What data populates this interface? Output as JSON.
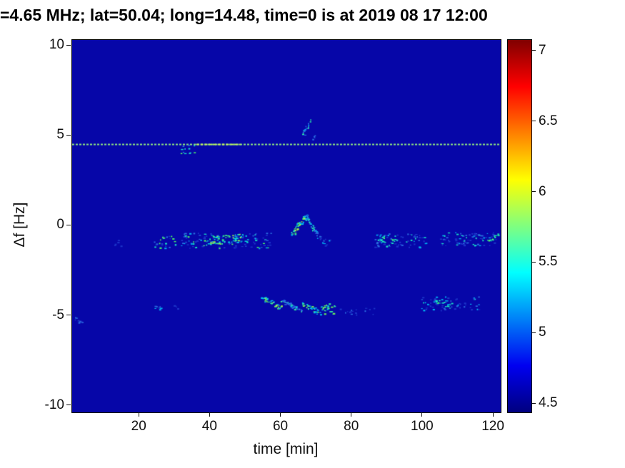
{
  "chart_data": {
    "type": "heatmap",
    "title": "=4.65 MHz;  lat=50.04; long=14.48, time=0 is at 2019 08 17 12:00",
    "xlabel": "time [min]",
    "ylabel": "Δf [Hz]",
    "xlim": [
      1,
      122
    ],
    "ylim": [
      -10.36,
      10.32
    ],
    "x_ticks": [
      20,
      40,
      60,
      80,
      100,
      120
    ],
    "x_tick_labels": [
      "20",
      "40",
      "60",
      "80",
      "100",
      "120"
    ],
    "y_ticks": [
      10,
      5,
      0,
      -5,
      -10
    ],
    "y_tick_labels": [
      "10",
      "5",
      "0",
      "-5",
      "-10"
    ],
    "background_color": "#0606a8",
    "colormap": "jet",
    "grid": false,
    "colorbar": {
      "clim": [
        4.44,
        7.08
      ],
      "ticks": [
        4.5,
        5,
        5.5,
        6,
        6.5,
        7
      ],
      "tick_labels": [
        "4.5",
        "5",
        "5.5",
        "6",
        "6.5",
        "7"
      ],
      "gradient": [
        [
          "#00007f",
          0
        ],
        [
          "#0000f0",
          0.125
        ],
        [
          "#00ffff",
          0.375
        ],
        [
          "#ffff00",
          0.625
        ],
        [
          "#ff0000",
          0.875
        ],
        [
          "#800000",
          1
        ]
      ]
    },
    "features": [
      {
        "name": "carrier-line",
        "type": "hline",
        "f": 4.55,
        "color": "#8fe87f",
        "dash": [
          3,
          2
        ],
        "line_width": 2
      },
      {
        "name": "carrier-line-bright",
        "type": "hseg",
        "f": 4.55,
        "t0": 36,
        "t1": 48.5,
        "color": "#c2f85c",
        "dash": [
          4,
          2
        ],
        "line_width": 2
      },
      {
        "name": "below-line-blob",
        "type": "speckles",
        "t0": 31.5,
        "t1": 36,
        "f_center": 4.3,
        "f_spread": 0.3,
        "n": 12,
        "palette": [
          "#2a6ce0",
          "#18d8c8",
          "#50f068"
        ],
        "seed": 11
      },
      {
        "name": "above-line-arc",
        "type": "streak",
        "t0": 65.8,
        "f0": 5.05,
        "t1": 68.3,
        "f1": 5.85,
        "n": 20,
        "jitter_f": 0.12,
        "palette": [
          "#2a6ce0",
          "#00c0f0",
          "#28e8a8"
        ],
        "seed": 12
      },
      {
        "name": "above-line-dot",
        "type": "speckles",
        "t0": 68.8,
        "t1": 69.8,
        "f_center": 4.95,
        "f_spread": 0.15,
        "n": 5,
        "palette": [
          "#2a6ce0",
          "#00c0f0"
        ],
        "seed": 13
      },
      {
        "name": "mid-band-left",
        "type": "speckles",
        "t0": 24,
        "t1": 57,
        "f_center": -0.8,
        "f_spread": 0.42,
        "n": 150,
        "palette": [
          "#1c34c8",
          "#2a6ce0",
          "#00b0f0",
          "#18e0c0",
          "#48f068"
        ],
        "seed": 14
      },
      {
        "name": "mid-band-left-bright",
        "type": "speckles",
        "t0": 39,
        "t1": 51,
        "f_center": -0.72,
        "f_spread": 0.28,
        "n": 55,
        "palette": [
          "#00d0e0",
          "#38f080",
          "#96f04c"
        ],
        "seed": 15
      },
      {
        "name": "peak-rise",
        "type": "streak",
        "t0": 62.5,
        "f0": -0.55,
        "t1": 67,
        "f1": 0.55,
        "n": 42,
        "jitter_f": 0.15,
        "palette": [
          "#00c0f0",
          "#20e8b0",
          "#58f060",
          "#a8f048"
        ],
        "seed": 16
      },
      {
        "name": "peak-fall",
        "type": "streak",
        "t0": 67,
        "f0": 0.55,
        "t1": 70.5,
        "f1": -0.6,
        "n": 34,
        "jitter_f": 0.15,
        "palette": [
          "#2a6ce0",
          "#00c0f0",
          "#20e8b0"
        ],
        "seed": 17
      },
      {
        "name": "peak-tail",
        "type": "speckles",
        "t0": 70.5,
        "t1": 74,
        "f_center": -0.85,
        "f_spread": 0.3,
        "n": 12,
        "palette": [
          "#1c34c8",
          "#2a6ce0",
          "#00b0f0"
        ],
        "seed": 18
      },
      {
        "name": "mid-band-right",
        "type": "speckles",
        "t0": 86,
        "t1": 101,
        "f_center": -0.8,
        "f_spread": 0.38,
        "n": 70,
        "palette": [
          "#1c34c8",
          "#2a6ce0",
          "#00b0f0",
          "#18e0c0"
        ],
        "seed": 19
      },
      {
        "name": "mid-band-right-bright",
        "type": "speckles",
        "t0": 88,
        "t1": 92.5,
        "f_center": -0.75,
        "f_spread": 0.22,
        "n": 14,
        "palette": [
          "#18e0c0",
          "#48f068"
        ],
        "seed": 20
      },
      {
        "name": "mid-band-far-right",
        "type": "speckles",
        "t0": 104,
        "t1": 121.5,
        "f_center": -0.72,
        "f_spread": 0.38,
        "n": 80,
        "palette": [
          "#1c34c8",
          "#2a6ce0",
          "#00b0f0",
          "#18e0c0"
        ],
        "seed": 21
      },
      {
        "name": "mid-band-edge-rise",
        "type": "streak",
        "t0": 118.5,
        "f0": -0.8,
        "t1": 121.6,
        "f1": -0.4,
        "n": 14,
        "jitter_f": 0.1,
        "palette": [
          "#20e8b0",
          "#58f060"
        ],
        "seed": 22
      },
      {
        "name": "low-band-streak-1",
        "type": "streak",
        "t0": 54.5,
        "f0": -4.0,
        "t1": 60,
        "f1": -4.55,
        "n": 38,
        "jitter_f": 0.12,
        "palette": [
          "#00c0f0",
          "#30e8a0",
          "#6cf058",
          "#b0f040"
        ],
        "seed": 23
      },
      {
        "name": "low-band-streak-2",
        "type": "streak",
        "t0": 60,
        "f0": -4.15,
        "t1": 66,
        "f1": -4.75,
        "n": 38,
        "jitter_f": 0.12,
        "palette": [
          "#2a6ce0",
          "#00c0f0",
          "#30e8a0"
        ],
        "seed": 24
      },
      {
        "name": "low-band-streak-3",
        "type": "streak",
        "t0": 66,
        "f0": -4.3,
        "t1": 71,
        "f1": -4.85,
        "n": 32,
        "jitter_f": 0.12,
        "palette": [
          "#00c0f0",
          "#30e8a0",
          "#6cf058"
        ],
        "seed": 25
      },
      {
        "name": "low-band-blob",
        "type": "speckles",
        "t0": 71,
        "t1": 75.5,
        "f_center": -4.6,
        "f_spread": 0.3,
        "n": 26,
        "palette": [
          "#00c0f0",
          "#30e8a0",
          "#6cf058"
        ],
        "seed": 26
      },
      {
        "name": "low-band-faint",
        "type": "speckles",
        "t0": 76.5,
        "t1": 88,
        "f_center": -4.65,
        "f_spread": 0.28,
        "n": 18,
        "palette": [
          "#1c34c8",
          "#2a6ce0"
        ],
        "seed": 27
      },
      {
        "name": "low-band-right",
        "type": "speckles",
        "t0": 99,
        "t1": 116,
        "f_center": -4.3,
        "f_spread": 0.38,
        "n": 65,
        "palette": [
          "#1c34c8",
          "#2a6ce0",
          "#00b0f0",
          "#18e0c0"
        ],
        "seed": 28
      },
      {
        "name": "low-band-right-bright",
        "type": "streak",
        "t0": 103,
        "f0": -4.1,
        "t1": 107.5,
        "f1": -4.45,
        "n": 14,
        "jitter_f": 0.1,
        "palette": [
          "#18e0c0",
          "#48f068"
        ],
        "seed": 29
      },
      {
        "name": "low-dot-t25",
        "type": "speckles",
        "t0": 23.5,
        "t1": 26,
        "f_center": -4.6,
        "f_spread": 0.18,
        "n": 7,
        "palette": [
          "#2a6ce0",
          "#00b0f0"
        ],
        "seed": 30
      },
      {
        "name": "low-dot-t30",
        "type": "speckles",
        "t0": 29,
        "t1": 31,
        "f_center": -4.5,
        "f_spread": 0.15,
        "n": 4,
        "palette": [
          "#1c34c8",
          "#2a6ce0"
        ],
        "seed": 33
      },
      {
        "name": "edge-streak-low",
        "type": "streak",
        "t0": 1.3,
        "f0": -5.1,
        "t1": 3.6,
        "f1": -5.4,
        "n": 10,
        "jitter_f": 0.08,
        "palette": [
          "#1c34c8",
          "#2a6ce0"
        ],
        "seed": 31
      },
      {
        "name": "sparse-dots-mid",
        "type": "speckles",
        "t0": 10,
        "t1": 20,
        "f_center": -0.9,
        "f_spread": 0.2,
        "n": 5,
        "palette": [
          "#1c34c8",
          "#2a6ce0"
        ],
        "seed": 32
      }
    ]
  }
}
